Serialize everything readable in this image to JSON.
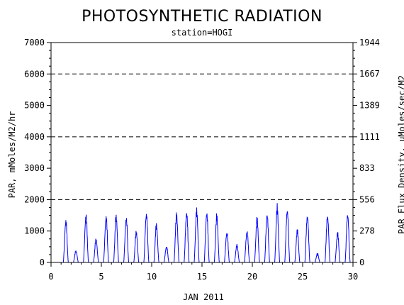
{
  "chart_data": {
    "type": "line",
    "title": "PHOTOSYNTHETIC RADIATION",
    "subtitle": "station=HOGI",
    "xlabel": "JAN 2011",
    "ylabel_left": "PAR, mMoles/M2/hr",
    "ylabel_right": "PAR Flux Density, uMoles/sec/M2",
    "xlim": [
      0,
      30
    ],
    "ylim": [
      0,
      7000
    ],
    "x_ticks": [
      0,
      5,
      10,
      15,
      20,
      25,
      30
    ],
    "y_ticks_left": [
      0,
      1000,
      2000,
      3000,
      4000,
      5000,
      6000,
      7000
    ],
    "y_ticks_right": [
      {
        "value": 0,
        "label": "0"
      },
      {
        "value": 278,
        "label": "278"
      },
      {
        "value": 556,
        "label": "556"
      },
      {
        "value": 833,
        "label": "833"
      },
      {
        "value": 1111,
        "label": "1111"
      },
      {
        "value": 1389,
        "label": "1389"
      },
      {
        "value": 1667,
        "label": "1667"
      },
      {
        "value": 1944,
        "label": "1944"
      }
    ],
    "right_axis_factor": 0.27778,
    "gridlines_dashed_at": [
      2000,
      4000,
      6000
    ],
    "series": [
      {
        "color": "#0000ff",
        "daily_peaks": [
          {
            "day": 1,
            "peak": 1450
          },
          {
            "day": 2,
            "peak": 400
          },
          {
            "day": 3,
            "peak": 1650
          },
          {
            "day": 4,
            "peak": 800
          },
          {
            "day": 5,
            "peak": 1600
          },
          {
            "day": 6,
            "peak": 1600
          },
          {
            "day": 7,
            "peak": 1550
          },
          {
            "day": 8,
            "peak": 1050
          },
          {
            "day": 9,
            "peak": 1700
          },
          {
            "day": 10,
            "peak": 1300
          },
          {
            "day": 11,
            "peak": 550
          },
          {
            "day": 12,
            "peak": 1650
          },
          {
            "day": 13,
            "peak": 1750
          },
          {
            "day": 14,
            "peak": 1800
          },
          {
            "day": 15,
            "peak": 1750
          },
          {
            "day": 16,
            "peak": 1600
          },
          {
            "day": 17,
            "peak": 1050
          },
          {
            "day": 18,
            "peak": 600
          },
          {
            "day": 19,
            "peak": 1100
          },
          {
            "day": 20,
            "peak": 1500
          },
          {
            "day": 21,
            "peak": 1700
          },
          {
            "day": 22,
            "peak": 1900
          },
          {
            "day": 23,
            "peak": 1850
          },
          {
            "day": 24,
            "peak": 1100
          },
          {
            "day": 25,
            "peak": 1650
          },
          {
            "day": 26,
            "peak": 300
          },
          {
            "day": 27,
            "peak": 1650
          },
          {
            "day": 28,
            "peak": 1000
          },
          {
            "day": 29,
            "peak": 1700
          }
        ]
      }
    ]
  }
}
